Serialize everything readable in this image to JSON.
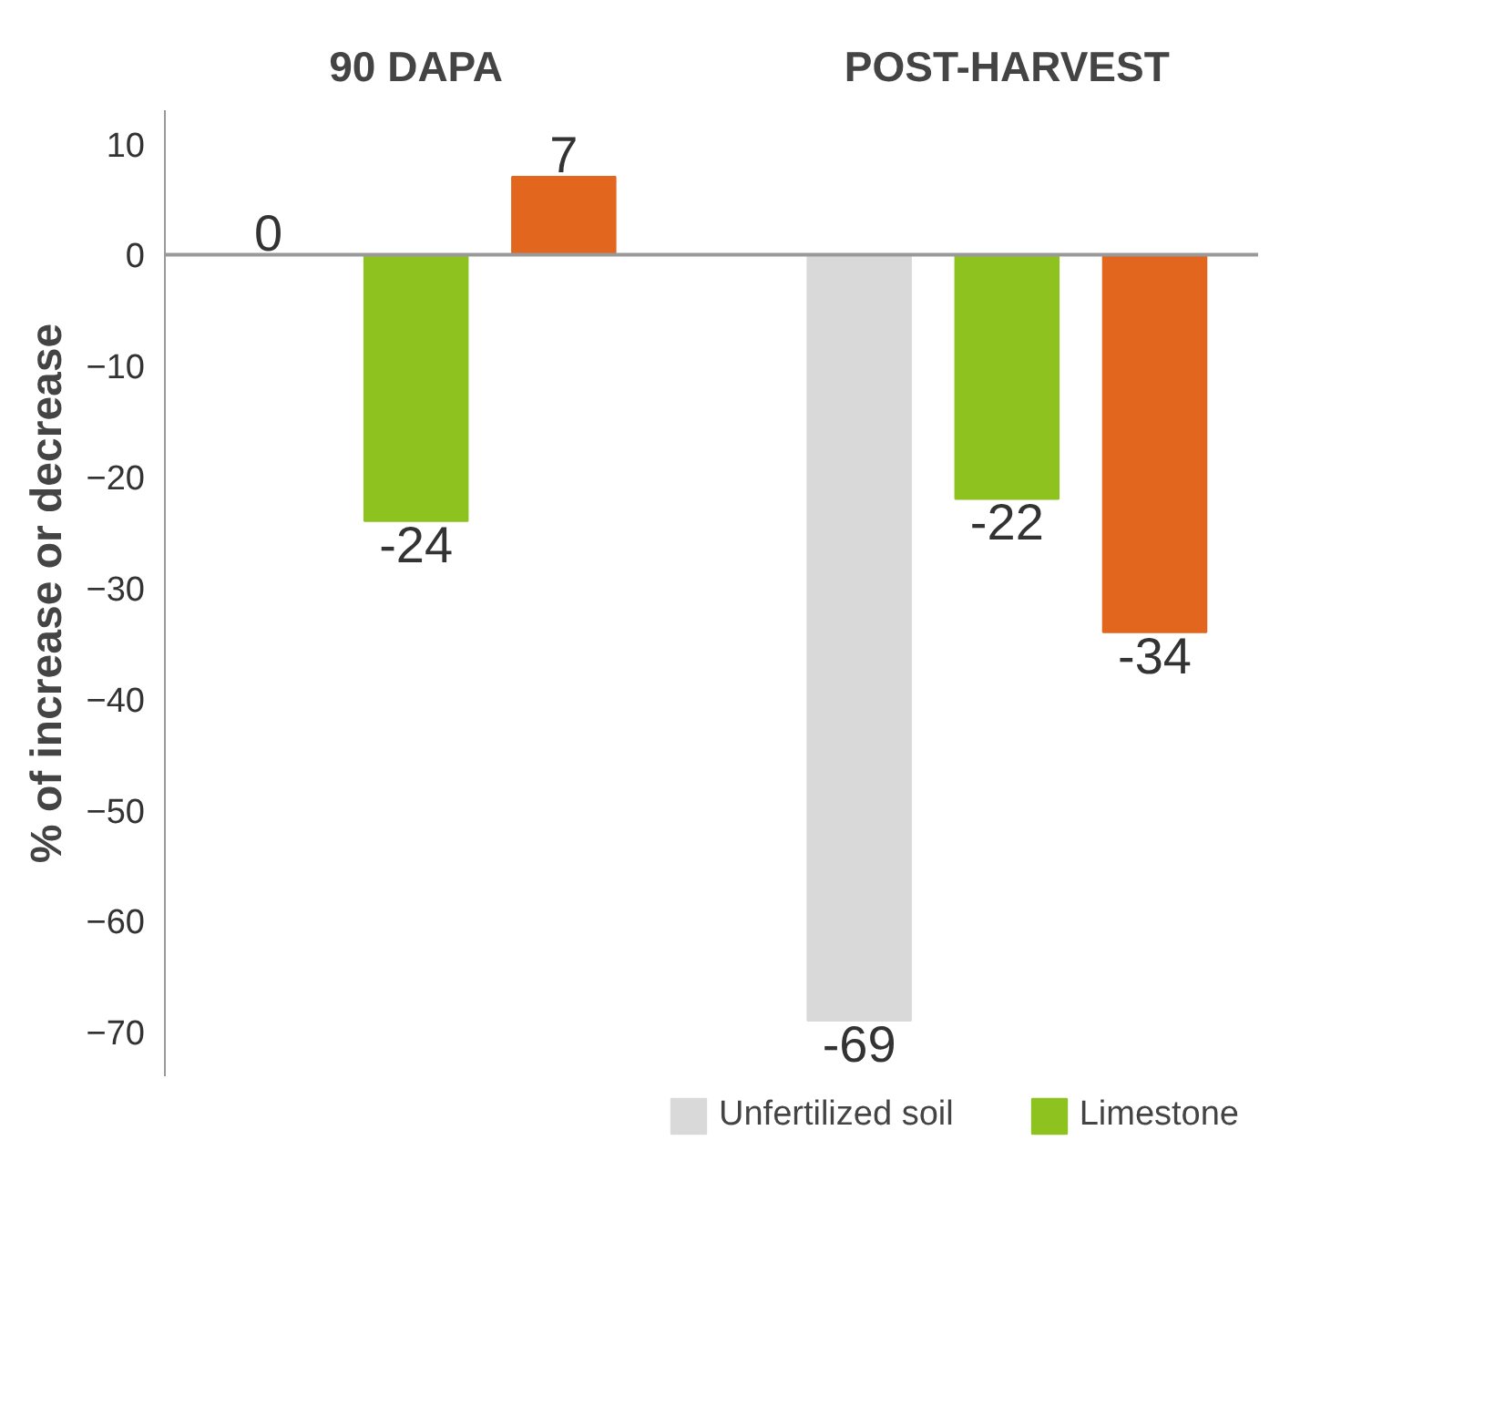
{
  "chart_data": {
    "type": "bar",
    "categories": [
      "90 DAPA",
      "POST-HARVEST"
    ],
    "ylabel": "% of increase or decrease",
    "series": [
      {
        "name": "Unfertilized soil",
        "color": "#d9d9d9",
        "values": [
          0,
          -69
        ]
      },
      {
        "name": "Limestone",
        "color": "#8dc21f",
        "values": [
          -24,
          -22
        ]
      },
      {
        "color": "#e2661e",
        "values": [
          7,
          -34
        ]
      }
    ],
    "ylim": [
      -74,
      13
    ],
    "yticks": [
      10,
      0,
      -10,
      -20,
      -30,
      -40,
      -50,
      -60,
      -70
    ],
    "data_labels": true,
    "legend": "bottom"
  }
}
